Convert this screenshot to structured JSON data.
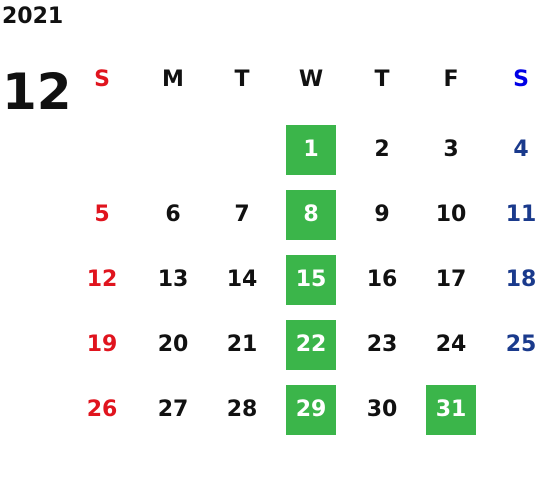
{
  "calendar": {
    "year": "2021",
    "month": "12",
    "weekdays": [
      {
        "label": "S",
        "kind": "sun"
      },
      {
        "label": "M",
        "kind": "weekday"
      },
      {
        "label": "T",
        "kind": "weekday"
      },
      {
        "label": "W",
        "kind": "weekday"
      },
      {
        "label": "T",
        "kind": "weekday"
      },
      {
        "label": "F",
        "kind": "weekday"
      },
      {
        "label": "S",
        "kind": "sat"
      }
    ],
    "first_weekday_index": 3,
    "days_in_month": 31,
    "highlighted_days": [
      1,
      8,
      15,
      22,
      29,
      31
    ]
  },
  "colors": {
    "text": "#111111",
    "sunday": "#e0141e",
    "saturday_header": "#0000e6",
    "saturday_date": "#1a3a8c",
    "highlight_bg": "#3bb54a",
    "highlight_text": "#ffffff"
  }
}
